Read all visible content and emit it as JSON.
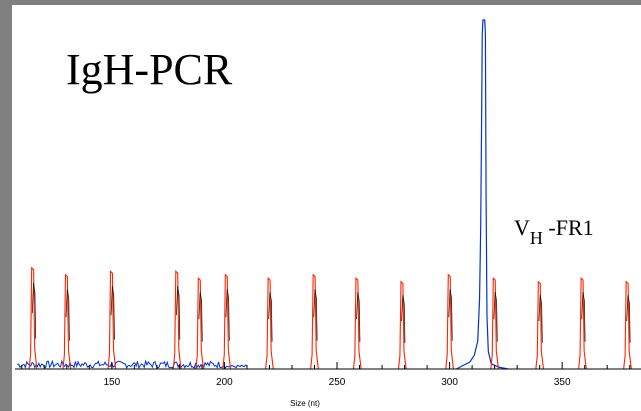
{
  "chart_data": {
    "type": "line",
    "title": "IgH-PCR",
    "xlabel": "Size (nt)",
    "ylabel": "",
    "xlim": [
      107,
      385
    ],
    "ylim": [
      0,
      100
    ],
    "xticks": [
      150,
      200,
      250,
      300,
      350
    ],
    "annotation": {
      "base": "V",
      "subscript": "H",
      "rest": " -FR1"
    },
    "series": [
      {
        "color": "#ff2200",
        "x": [
          115,
          130,
          150,
          179,
          189,
          201,
          220,
          240,
          259,
          279,
          300,
          320,
          340,
          359,
          379
        ],
        "values": [
          29,
          27,
          28,
          28,
          26,
          27,
          26,
          27,
          26,
          25,
          27,
          26,
          25,
          26,
          25
        ]
      },
      {
        "color": "#0033cc",
        "peak_x": 315,
        "peak_value": 100
      }
    ]
  }
}
